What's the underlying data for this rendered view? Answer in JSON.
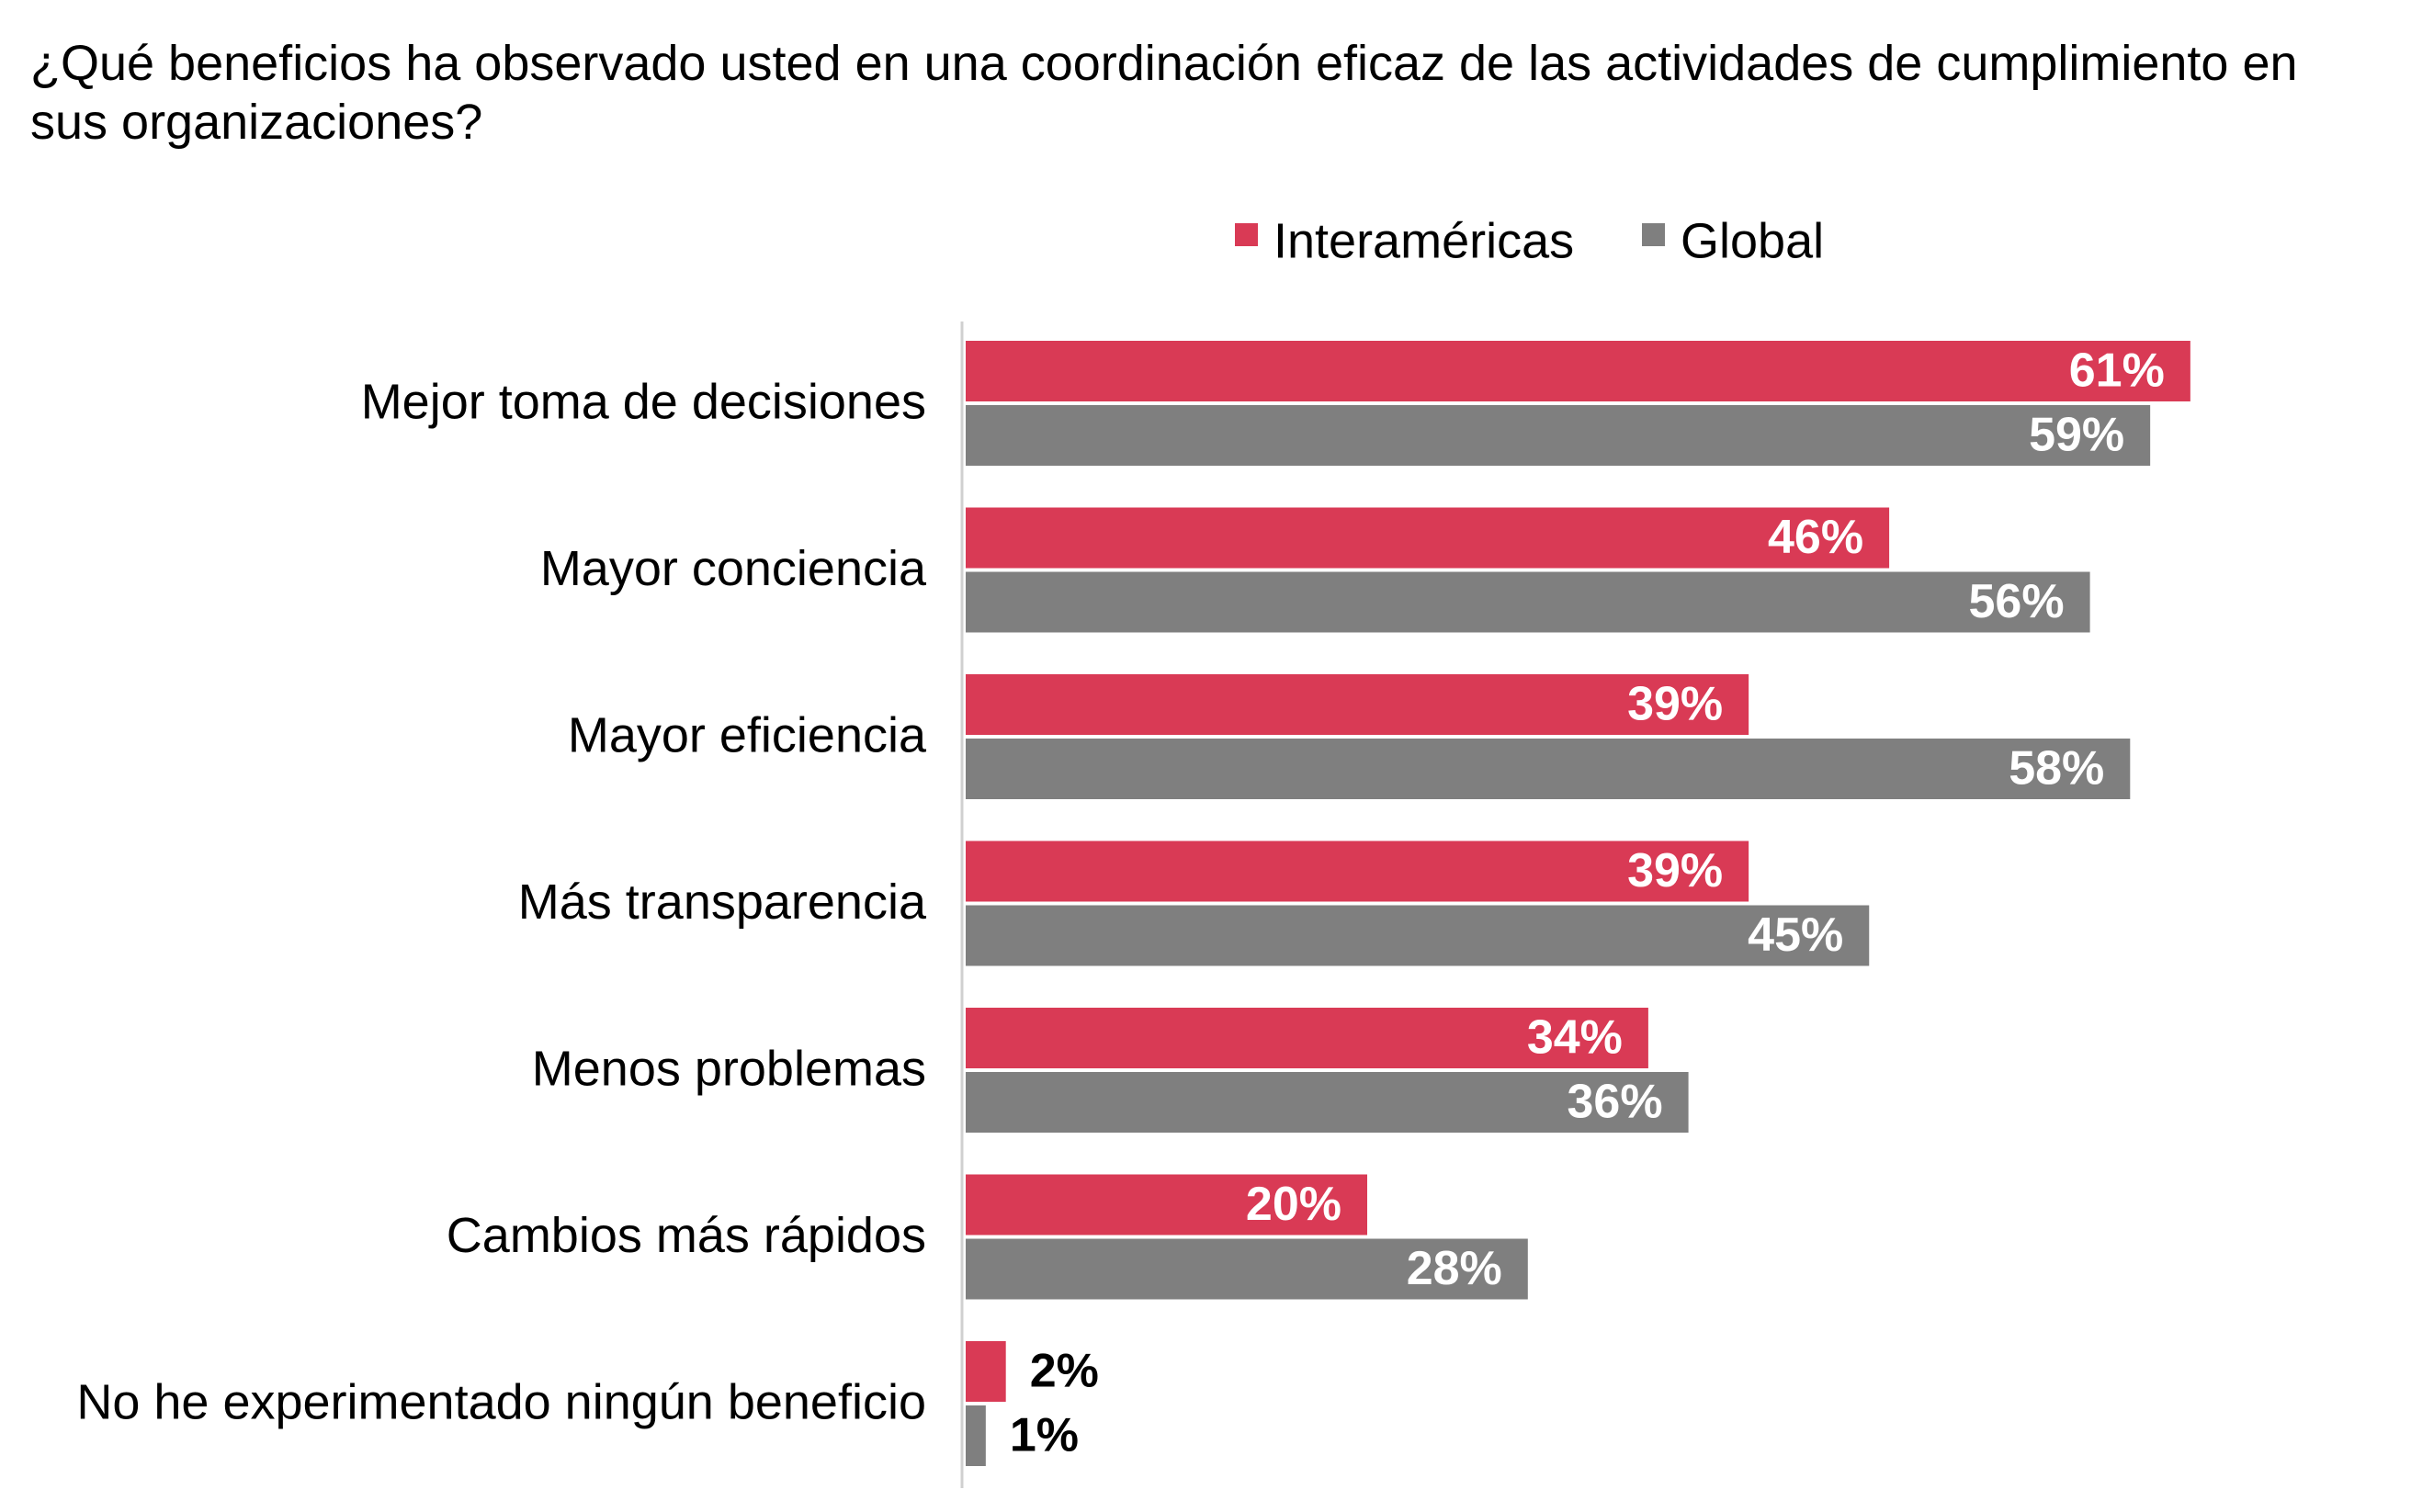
{
  "chart_data": {
    "type": "bar",
    "orientation": "horizontal",
    "title": "¿Qué beneficios ha observado usted en una coordinación eficaz de las actividades de cumplimiento en sus organizaciones?",
    "title_lines": [
      "¿Qué beneficios ha observado usted en una coordinación eficaz de las actividades de cumplimiento en",
      "sus organizaciones?"
    ],
    "categories": [
      "Mejor toma de decisiones",
      "Mayor conciencia",
      "Mayor eficiencia",
      "Más transparencia",
      "Menos problemas",
      "Cambios más rápidos",
      "No he experimentado ningún beneficio"
    ],
    "series": [
      {
        "name": "Interaméricas",
        "color": "#d93a55",
        "values": [
          61,
          46,
          39,
          39,
          34,
          20,
          2
        ],
        "labels": [
          "61%",
          "46%",
          "39%",
          "39%",
          "34%",
          "20%",
          "2%"
        ]
      },
      {
        "name": "Global",
        "color": "#7f7f7f",
        "values": [
          59,
          56,
          58,
          45,
          36,
          28,
          1
        ],
        "labels": [
          "59%",
          "56%",
          "58%",
          "45%",
          "36%",
          "28%",
          "1%"
        ]
      }
    ],
    "value_unit": "%",
    "xlim": [
      0,
      61
    ],
    "legend_position": "top",
    "grid": false,
    "xlabel": "",
    "ylabel": ""
  }
}
